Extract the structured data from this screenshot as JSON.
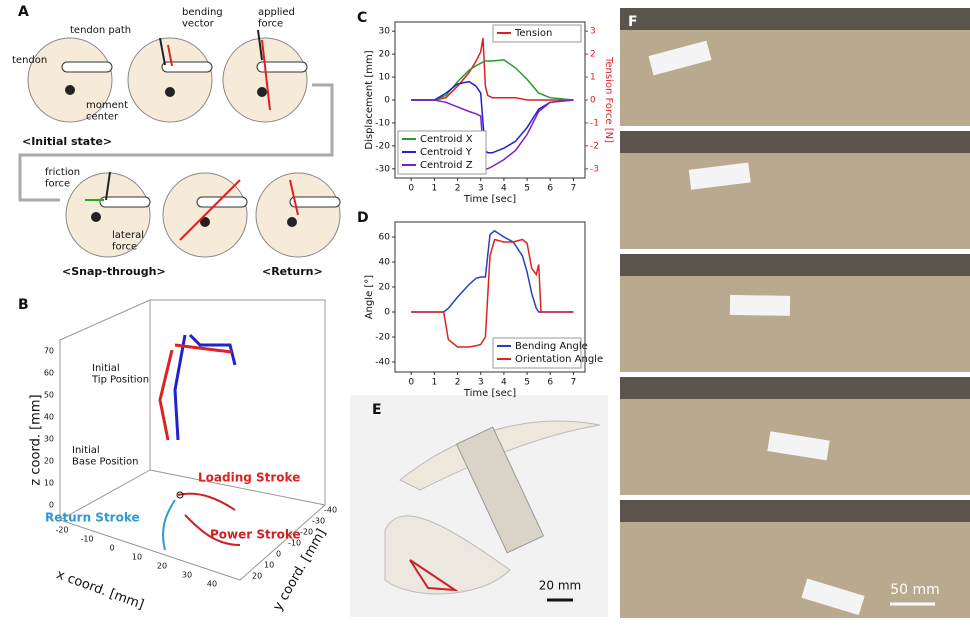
{
  "panel_a": {
    "letter": "A",
    "tendon_path": "tendon path",
    "tendon": "tendon",
    "moment_center": "moment\ncenter",
    "bending_vector": "bending\nvector",
    "applied_force": "applied\nforce",
    "friction_force": "friction\nforce",
    "lateral_force": "lateral\nforce",
    "initial_state": "<Initial state>",
    "snap_through": "<Snap-through>",
    "return": "<Return>"
  },
  "panel_b": {
    "letter": "B",
    "tip": "Initial\nTip Position",
    "base": "Initial\nBase Position",
    "loading": "Loading Stroke",
    "return_stroke": "Return Stroke",
    "power": "Power Stroke",
    "zlabel": "z coord. [mm]",
    "xlabel": "x coord. [mm]",
    "ylabel": "y coord. [mm]",
    "zticks": [
      0,
      10,
      20,
      30,
      40,
      50,
      60,
      70
    ],
    "xticks": [
      -20,
      -10,
      0,
      10,
      20,
      30,
      40
    ],
    "yticks": [
      20,
      10,
      0,
      -10,
      -20,
      -30,
      -40
    ]
  },
  "charts": [
    {
      "letter": "C",
      "type": "line",
      "xlabel": "Time [sec]",
      "ylabel": "Displacement [mm]",
      "y2label": "Tension Force [N]",
      "x": [
        0,
        1,
        1.5,
        2,
        2.5,
        2.8,
        3,
        3.1,
        3.2,
        3.3,
        3.5,
        4,
        4.5,
        5,
        5.5,
        6,
        7
      ],
      "xlim": [
        -0.7,
        7.5
      ],
      "xticks": [
        0,
        1,
        2,
        3,
        4,
        5,
        6,
        7
      ],
      "ylim": [
        -34,
        34
      ],
      "yticks": [
        -30,
        -20,
        -10,
        0,
        10,
        20,
        30
      ],
      "y2lim": [
        -3.4,
        3.4
      ],
      "y2ticks": [
        -3,
        -2,
        -1,
        0,
        1,
        2,
        3
      ],
      "series": [
        {
          "name": "Tension",
          "color": "#e02020",
          "axis": "y2",
          "values": [
            0,
            0,
            0.1,
            0.6,
            1.2,
            1.7,
            2.1,
            2.7,
            0.6,
            0.2,
            0.1,
            0.1,
            0.1,
            0,
            0,
            0,
            0
          ]
        },
        {
          "name": "Centroid X",
          "color": "#2a9a2a",
          "values": [
            0,
            0,
            2,
            8,
            13,
            15,
            16,
            16.5,
            17,
            17,
            17,
            17.5,
            14,
            9,
            3,
            1,
            0
          ]
        },
        {
          "name": "Centroid Y",
          "color": "#2222cc",
          "values": [
            0,
            0,
            3,
            7,
            8,
            6,
            3,
            -10,
            -22,
            -23,
            -23,
            -21,
            -18,
            -12,
            -4,
            -1,
            0
          ]
        },
        {
          "name": "Centroid Z",
          "color": "#7a22cc",
          "values": [
            0,
            0,
            -1,
            -3,
            -5,
            -6,
            -7,
            -20,
            -30,
            -30,
            -29,
            -26,
            -22,
            -15,
            -5,
            -1,
            0
          ]
        }
      ]
    },
    {
      "letter": "D",
      "type": "line",
      "xlabel": "Time [sec]",
      "ylabel": "Angle [°]",
      "x": [
        0,
        1.4,
        1.6,
        2,
        2.5,
        2.8,
        3,
        3.2,
        3.4,
        3.6,
        4,
        4.4,
        4.8,
        5,
        5.2,
        5.4,
        5.5,
        5.6,
        7
      ],
      "xlim": [
        -0.7,
        7.5
      ],
      "xticks": [
        0,
        1,
        2,
        3,
        4,
        5,
        6,
        7
      ],
      "ylim": [
        -48,
        72
      ],
      "yticks": [
        -40,
        -20,
        0,
        20,
        40,
        60
      ],
      "series": [
        {
          "name": "Bending Angle",
          "color": "#2244bb",
          "values": [
            0,
            0,
            3,
            12,
            22,
            27,
            28,
            28,
            62,
            65,
            60,
            56,
            45,
            32,
            15,
            3,
            0,
            0,
            0
          ]
        },
        {
          "name": "Orientation Angle",
          "color": "#dd2222",
          "values": [
            0,
            0,
            -22,
            -28,
            -28,
            -27,
            -26,
            -20,
            45,
            58,
            56,
            56,
            58,
            55,
            35,
            30,
            38,
            0,
            0
          ]
        }
      ]
    }
  ],
  "panel_e": {
    "letter": "E",
    "scale": "20 mm"
  },
  "panel_f": {
    "letter": "F",
    "scale": "50 mm"
  }
}
